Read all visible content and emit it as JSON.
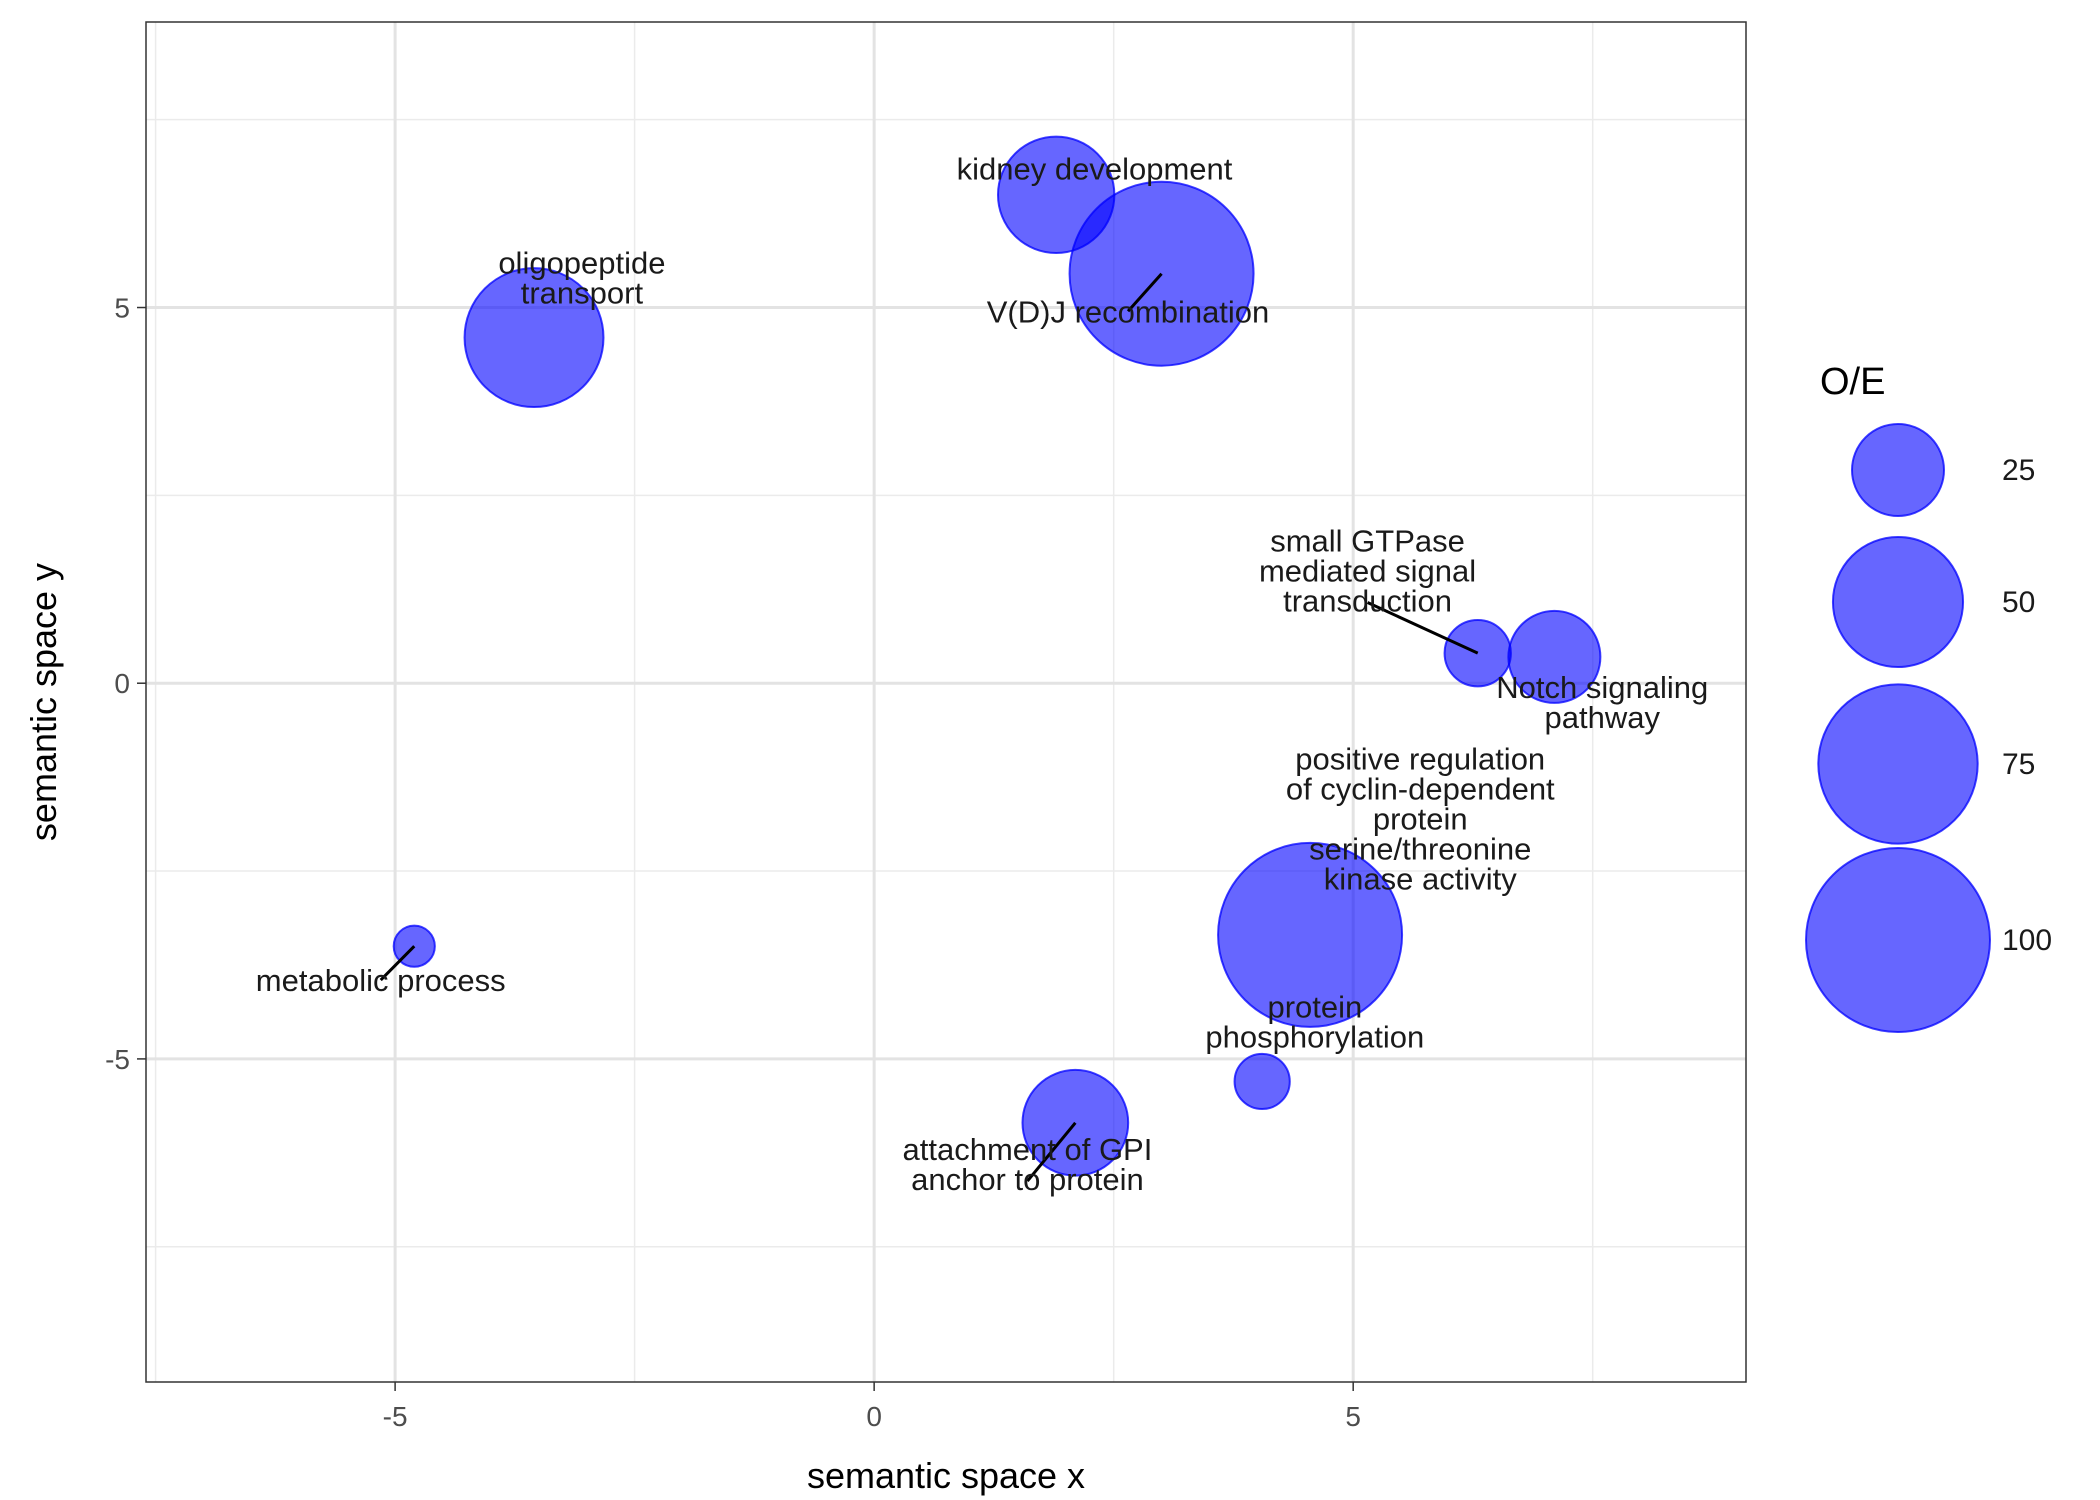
{
  "chart_data": {
    "type": "scatter",
    "title": "",
    "xlabel": "semantic space x",
    "ylabel": "semantic space y",
    "xlim": [
      -7.6,
      9.1
    ],
    "ylim": [
      -9.3,
      8.8
    ],
    "x_ticks": [
      -5,
      0,
      5
    ],
    "y_ticks": [
      -5,
      0,
      5
    ],
    "x_tick_labels": [
      "-5",
      "0",
      "5"
    ],
    "y_tick_labels": [
      "-5",
      "0",
      "5"
    ],
    "x_minor_ticks": [
      -7.5,
      -2.5,
      2.5,
      7.5
    ],
    "y_minor_ticks": [
      -7.5,
      -2.5,
      2.5,
      7.5
    ],
    "grid": true,
    "point_color": "#0000FF",
    "point_opacity": 0.6,
    "size_legend": {
      "title": "O/E",
      "placement": "right",
      "values": [
        25,
        50,
        75,
        100
      ],
      "labels": [
        "25",
        "50",
        "75",
        "100"
      ]
    },
    "points": [
      {
        "term": "kidney development",
        "x": 1.9,
        "y": 6.5,
        "oe": 40,
        "label_lines": [
          "kidney development"
        ],
        "label_x": 2.3,
        "label_y": 6.85,
        "leader": false
      },
      {
        "term": "V(D)J recombination",
        "x": 3.0,
        "y": 5.45,
        "oe": 100,
        "label_lines": [
          "V(D)J recombination"
        ],
        "label_x": 2.65,
        "label_y": 4.95,
        "leader": true
      },
      {
        "term": "oligopeptide transport",
        "x": -3.55,
        "y": 4.6,
        "oe": 57,
        "label_lines": [
          "oligopeptide",
          "transport"
        ],
        "label_x": -3.05,
        "label_y": 5.4,
        "leader": false
      },
      {
        "term": "small GTPase mediated signal transduction",
        "x": 6.3,
        "y": 0.4,
        "oe": 13,
        "label_lines": [
          "small GTPase",
          "mediated signal",
          "transduction"
        ],
        "label_x": 5.15,
        "label_y": 1.5,
        "leader": true
      },
      {
        "term": "Notch signaling pathway",
        "x": 7.1,
        "y": 0.35,
        "oe": 25,
        "label_lines": [
          "Notch signaling",
          "pathway"
        ],
        "label_x": 7.6,
        "label_y": -0.25,
        "leader": false
      },
      {
        "term": "positive regulation of cyclin-dependent protein serine/threonine kinase activity",
        "x": 4.55,
        "y": -3.35,
        "oe": 100,
        "label_lines": [
          "positive regulation",
          "of cyclin-dependent",
          "protein",
          "serine/threonine",
          "kinase activity"
        ],
        "label_x": 5.7,
        "label_y": -1.8,
        "leader": false
      },
      {
        "term": "protein phosphorylation",
        "x": 4.05,
        "y": -5.3,
        "oe": 9,
        "label_lines": [
          "protein",
          "phosphorylation"
        ],
        "label_x": 4.6,
        "label_y": -4.5,
        "leader": false
      },
      {
        "term": "attachment of GPI anchor to protein",
        "x": 2.1,
        "y": -5.85,
        "oe": 33,
        "label_lines": [
          "attachment of GPI",
          "anchor to protein"
        ],
        "label_x": 1.6,
        "label_y": -6.4,
        "leader": true
      },
      {
        "term": "metabolic process",
        "x": -4.8,
        "y": -3.5,
        "oe": 5,
        "label_lines": [
          "metabolic process"
        ],
        "label_x": -5.15,
        "label_y": -3.95,
        "leader": true
      }
    ]
  }
}
